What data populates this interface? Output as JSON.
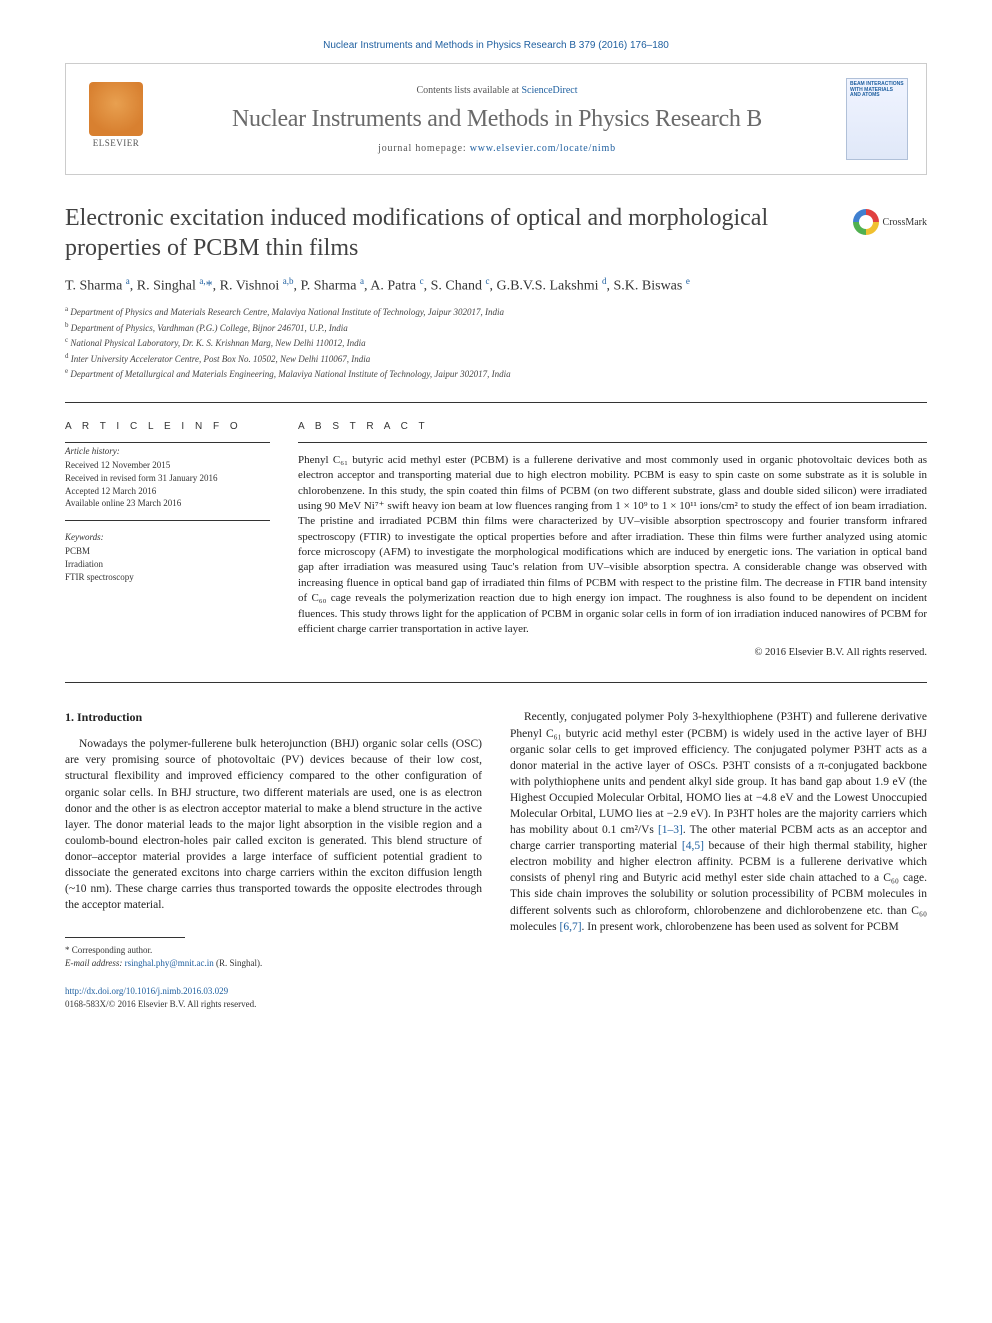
{
  "citation": "Nuclear Instruments and Methods in Physics Research B 379 (2016) 176–180",
  "banner": {
    "publisher": "ELSEVIER",
    "contents_prefix": "Contents lists available at ",
    "contents_link": "ScienceDirect",
    "journal_name": "Nuclear Instruments and Methods in Physics Research B",
    "homepage_prefix": "journal homepage: ",
    "homepage_url": "www.elsevier.com/locate/nimb",
    "cover_text": "BEAM INTERACTIONS WITH MATERIALS AND ATOMS"
  },
  "title": "Electronic excitation induced modifications of optical and morphological properties of PCBM thin films",
  "crossmark_label": "CrossMark",
  "authors_html": "T. Sharma <sup>a</sup>, R. Singhal <sup>a,</sup><a href='#'>*</a>, R. Vishnoi <sup>a,b</sup>, P. Sharma <sup>a</sup>, A. Patra <sup>c</sup>, S. Chand <sup>c</sup>, G.B.V.S. Lakshmi <sup>d</sup>, S.K. Biswas <sup>e</sup>",
  "affiliations": [
    {
      "sup": "a",
      "text": "Department of Physics and Materials Research Centre, Malaviya National Institute of Technology, Jaipur 302017, India"
    },
    {
      "sup": "b",
      "text": "Department of Physics, Vardhman (P.G.) College, Bijnor 246701, U.P., India"
    },
    {
      "sup": "c",
      "text": "National Physical Laboratory, Dr. K. S. Krishnan Marg, New Delhi 110012, India"
    },
    {
      "sup": "d",
      "text": "Inter University Accelerator Centre, Post Box No. 10502, New Delhi 110067, India"
    },
    {
      "sup": "e",
      "text": "Department of Metallurgical and Materials Engineering, Malaviya National Institute of Technology, Jaipur 302017, India"
    }
  ],
  "article_info": {
    "heading": "A R T I C L E   I N F O",
    "history_label": "Article history:",
    "history": [
      "Received 12 November 2015",
      "Received in revised form 31 January 2016",
      "Accepted 12 March 2016",
      "Available online 23 March 2016"
    ],
    "keywords_label": "Keywords:",
    "keywords": [
      "PCBM",
      "Irradiation",
      "FTIR spectroscopy"
    ]
  },
  "abstract": {
    "heading": "A B S T R A C T",
    "text": "Phenyl C₆₁ butyric acid methyl ester (PCBM) is a fullerene derivative and most commonly used in organic photovoltaic devices both as electron acceptor and transporting material due to high electron mobility. PCBM is easy to spin caste on some substrate as it is soluble in chlorobenzene. In this study, the spin coated thin films of PCBM (on two different substrate, glass and double sided silicon) were irradiated using 90 MeV Ni⁷⁺ swift heavy ion beam at low fluences ranging from 1 × 10⁹ to 1 × 10¹¹ ions/cm² to study the effect of ion beam irradiation. The pristine and irradiated PCBM thin films were characterized by UV–visible absorption spectroscopy and fourier transform infrared spectroscopy (FTIR) to investigate the optical properties before and after irradiation. These thin films were further analyzed using atomic force microscopy (AFM) to investigate the morphological modifications which are induced by energetic ions. The variation in optical band gap after irradiation was measured using Tauc's relation from UV–visible absorption spectra. A considerable change was observed with increasing fluence in optical band gap of irradiated thin films of PCBM with respect to the pristine film. The decrease in FTIR band intensity of C₆₀ cage reveals the polymerization reaction due to high energy ion impact. The roughness is also found to be dependent on incident fluences. This study throws light for the application of PCBM in organic solar cells in form of ion irradiation induced nanowires of PCBM for efficient charge carrier transportation in active layer.",
    "copyright": "© 2016 Elsevier B.V. All rights reserved."
  },
  "intro": {
    "heading": "1. Introduction",
    "col1": "Nowadays the polymer-fullerene bulk heterojunction (BHJ) organic solar cells (OSC) are very promising source of photovoltaic (PV) devices because of their low cost, structural flexibility and improved efficiency compared to the other configuration of organic solar cells. In BHJ structure, two different materials are used, one is as electron donor and the other is as electron acceptor material to make a blend structure in the active layer. The donor material leads to the major light absorption in the visible region and a coulomb-bound electron-holes pair called exciton is generated. This blend structure of donor–acceptor material provides a large interface of sufficient potential gradient to dissociate the generated excitons into charge carriers within the exciton diffusion length (~10 nm). These charge carries thus transported towards the opposite electrodes through the acceptor material.",
    "col2_html": "Recently, conjugated polymer Poly 3-hexylthiophene (P3HT) and fullerene derivative Phenyl C₆₁ butyric acid methyl ester (PCBM) is widely used in the active layer of BHJ organic solar cells to get improved efficiency. The conjugated polymer P3HT acts as a donor material in the active layer of OSCs. P3HT consists of a π-conjugated backbone with polythiophene units and pendent alkyl side group. It has band gap about 1.9 eV (the Highest Occupied Molecular Orbital, HOMO lies at −4.8 eV and the Lowest Unoccupied Molecular Orbital, LUMO lies at −2.9 eV). In P3HT holes are the majority carriers which has mobility about 0.1 cm²/Vs <a href='#'>[1–3]</a>. The other material PCBM acts as an acceptor and charge carrier transporting material <a href='#'>[4,5]</a> because of their high thermal stability, higher electron mobility and higher electron affinity. PCBM is a fullerene derivative which consists of phenyl ring and Butyric acid methyl ester side chain attached to a C₆₀ cage. This side chain improves the solubility or solution processibility of PCBM molecules in different solvents such as chloroform, chlorobenzene and dichlorobenzene etc. than C₆₀ molecules <a href='#'>[6,7]</a>. In present work, chlorobenzene has been used as solvent for PCBM"
  },
  "footnote": {
    "corresponding": "* Corresponding author.",
    "email_label": "E-mail address: ",
    "email": "rsinghal.phy@mnit.ac.in",
    "email_suffix": " (R. Singhal)."
  },
  "doi": {
    "url": "http://dx.doi.org/10.1016/j.nimb.2016.03.029",
    "issn_line": "0168-583X/© 2016 Elsevier B.V. All rights reserved."
  },
  "colors": {
    "link": "#2060a0",
    "text": "#222222",
    "muted": "#555555",
    "border": "#cccccc"
  }
}
